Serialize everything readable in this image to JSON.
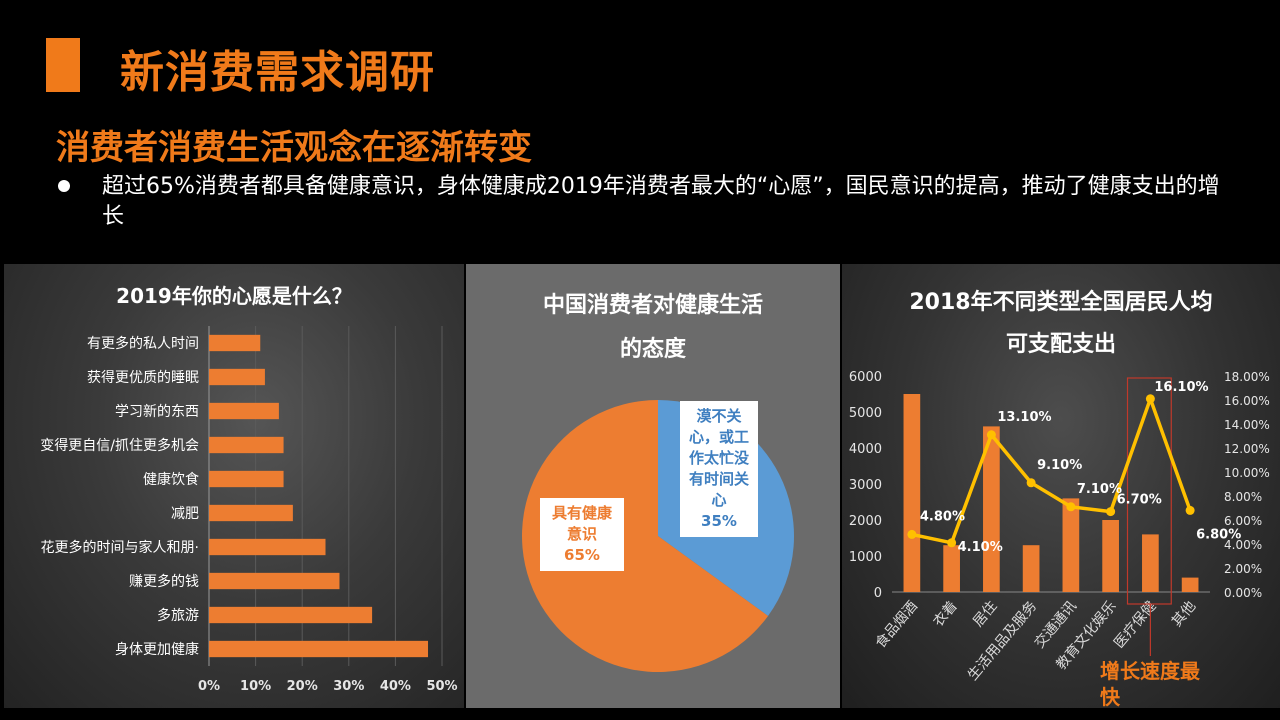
{
  "header": {
    "title": "新消费需求调研",
    "subtitle": "消费者消费生活观念在逐渐转变",
    "bullet": "超过65%消费者都具备健康意识，身体健康成2019年消费者最大的“心愿”，国民意识的提高，推动了健康支出的增长"
  },
  "colors": {
    "accent": "#f07a1a",
    "bar": "#ed7d31",
    "line": "#ffc000",
    "pie_blue": "#5b9bd5"
  },
  "chart_data": [
    {
      "type": "bar",
      "orientation": "horizontal",
      "title": "2019年你的心愿是什么？",
      "categories": [
        "有更多的私人时间",
        "获得更优质的睡眠",
        "学习新的东西",
        "变得更自信/抓住更多机会",
        "健康饮食",
        "减肥",
        "花更多的时间与家人和朋·",
        "赚更多的钱",
        "多旅游",
        "身体更加健康"
      ],
      "values": [
        11,
        12,
        15,
        16,
        16,
        18,
        25,
        28,
        35,
        47
      ],
      "xlim": [
        0,
        50
      ],
      "ticks": [
        "0%",
        "10%",
        "20%",
        "30%",
        "40%",
        "50%"
      ],
      "grid": true
    },
    {
      "type": "pie",
      "title_lines": [
        "中国消费者对健康生活",
        "的态度"
      ],
      "slices": [
        {
          "label_lines": [
            "漠不关",
            "心，或工",
            "作太忙没",
            "有时间关",
            "心"
          ],
          "pct": "35%",
          "value": 35,
          "color": "#5b9bd5"
        },
        {
          "label_lines": [
            "具有健康",
            "意识"
          ],
          "pct": "65%",
          "value": 65,
          "color": "#ed7d31"
        }
      ]
    },
    {
      "type": "bar+line",
      "title_lines": [
        "2018年不同类型全国居民人均",
        "可支配支出"
      ],
      "categories": [
        "食品烟酒",
        "衣着",
        "居住",
        "生活用品及服务",
        "交通通讯",
        "教育文化娱乐",
        "医疗保健",
        "其他"
      ],
      "bar_values": [
        5500,
        1300,
        4600,
        1300,
        2600,
        2000,
        1600,
        400
      ],
      "line_values": [
        4.8,
        4.1,
        13.1,
        9.1,
        7.1,
        6.7,
        16.1,
        6.8
      ],
      "line_labels": [
        "4.80%",
        "4.10%",
        "13.10%",
        "9.10%",
        "7.10%",
        "6.70%",
        "16.10%",
        "6.80%"
      ],
      "ylim_left": [
        0,
        6000
      ],
      "ticks_left": [
        "0",
        "1000",
        "2000",
        "3000",
        "4000",
        "5000",
        "6000"
      ],
      "ylim_right": [
        0,
        18
      ],
      "ticks_right": [
        "0.00%",
        "2.00%",
        "4.00%",
        "6.00%",
        "8.00%",
        "10.00%",
        "12.00%",
        "14.00%",
        "16.00%",
        "18.00%"
      ],
      "annotation": "增长速度最快"
    }
  ]
}
